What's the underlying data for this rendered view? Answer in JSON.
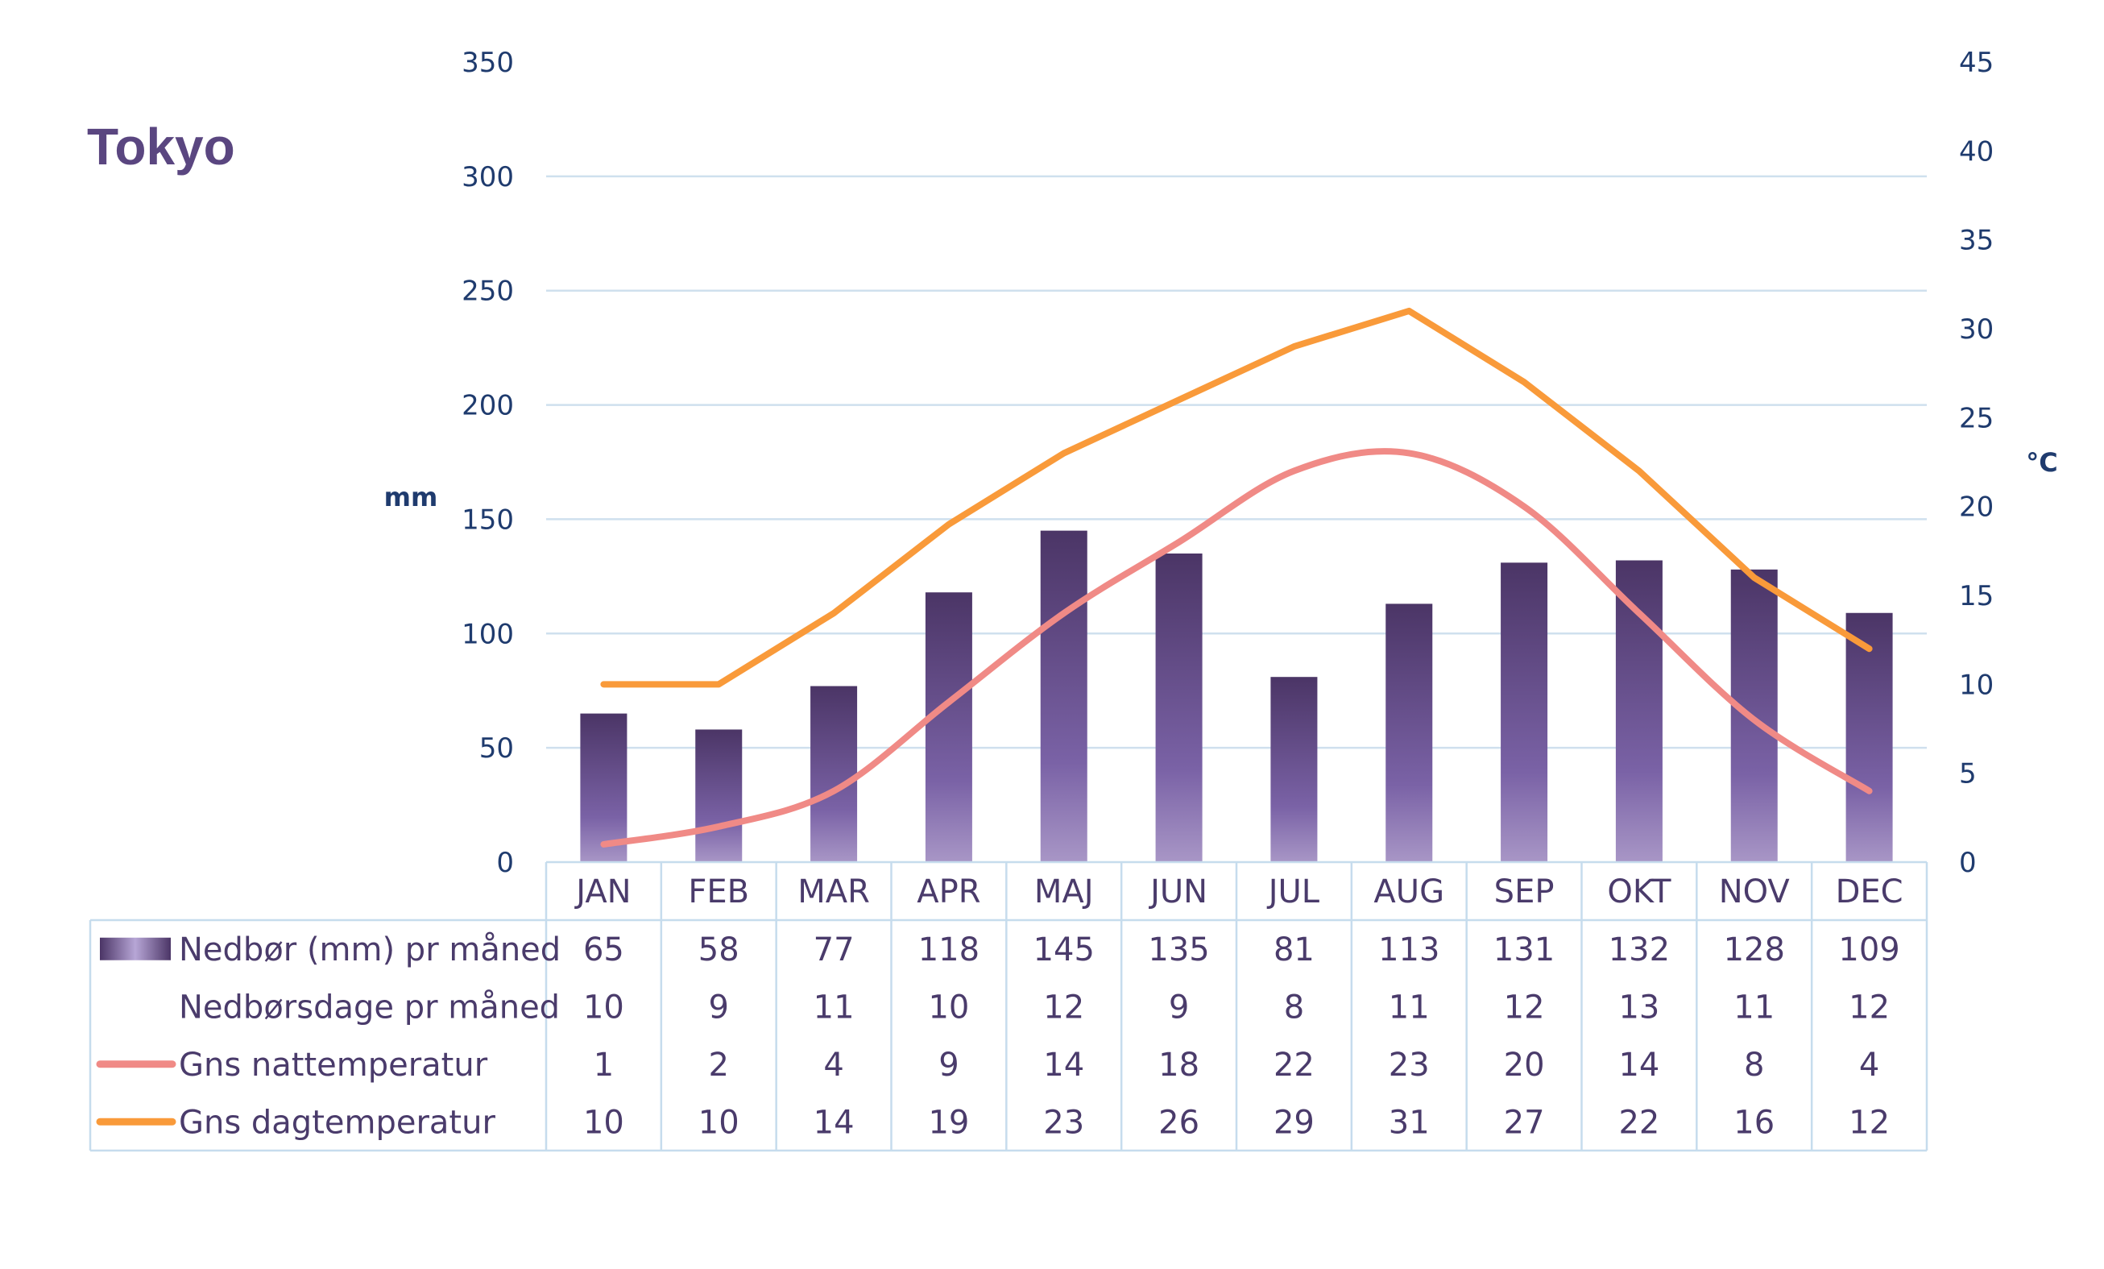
{
  "colors": {
    "bar_top": "#4b3566",
    "bar_bottom": "#a896c6",
    "night_line": "#f08a86",
    "day_line": "#f99a3a",
    "text": "#4a3b6b",
    "axis_text": "#1f3b6e",
    "grid": "#cfe0ee",
    "table_border": "#c6dced"
  },
  "chart_data": {
    "type": "bar+line",
    "title": "Tokyo",
    "y_left_unit": "mm",
    "y_right_unit": "°C",
    "y_left_ticks": [
      "0",
      "50",
      "100",
      "150",
      "200",
      "250",
      "300",
      "350"
    ],
    "y_right_ticks": [
      "0",
      "5",
      "10",
      "15",
      "20",
      "25",
      "30",
      "35",
      "40",
      "45"
    ],
    "ylim_left": [
      0,
      350
    ],
    "ylim_right": [
      0,
      45
    ],
    "categories": [
      "JAN",
      "FEB",
      "MAR",
      "APR",
      "MAJ",
      "JUN",
      "JUL",
      "AUG",
      "SEP",
      "OKT",
      "NOV",
      "DEC"
    ],
    "series": [
      {
        "name": "Nedbør (mm) pr måned",
        "type": "bar",
        "axis": "left",
        "values": [
          65,
          58,
          77,
          118,
          145,
          135,
          81,
          113,
          131,
          132,
          128,
          109
        ]
      },
      {
        "name": "Nedbørsdage pr måned",
        "type": "table-only",
        "values": [
          10,
          9,
          11,
          10,
          12,
          9,
          8,
          11,
          12,
          13,
          11,
          12
        ]
      },
      {
        "name": "Gns nattemperatur",
        "type": "line",
        "axis": "right",
        "smooth": true,
        "values": [
          1,
          2,
          4,
          9,
          14,
          18,
          22,
          23,
          20,
          14,
          8,
          4
        ]
      },
      {
        "name": "Gns dagtemperatur",
        "type": "line",
        "axis": "right",
        "smooth": false,
        "values": [
          10,
          10,
          14,
          19,
          23,
          26,
          29,
          31,
          27,
          22,
          16,
          12
        ]
      }
    ],
    "grid": true,
    "legend": "data-table"
  }
}
